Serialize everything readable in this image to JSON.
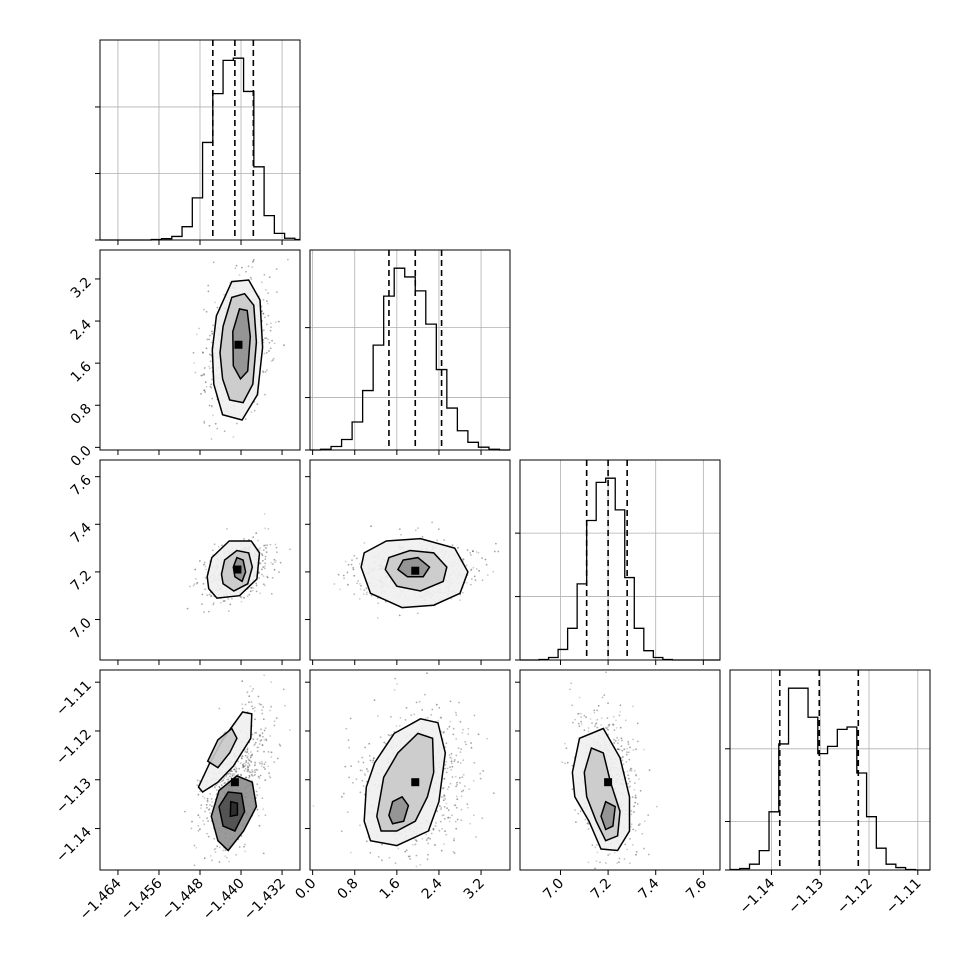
{
  "chart_data": {
    "type": "corner",
    "parameters": [
      {
        "range": [
          -1.4675,
          -1.4285
        ],
        "ticks": [
          -1.464,
          -1.456,
          -1.448,
          -1.44,
          -1.432
        ],
        "tick_labels": [
          "−1.464",
          "−1.456",
          "−1.448",
          "−1.440",
          "−1.432"
        ]
      },
      {
        "range": [
          -0.05,
          3.75
        ],
        "ticks": [
          0.0,
          0.8,
          1.6,
          2.4,
          3.2
        ],
        "tick_labels": [
          "0.0",
          "0.8",
          "1.6",
          "2.4",
          "3.2"
        ]
      },
      {
        "range": [
          6.83,
          7.67
        ],
        "ticks": [
          7.0,
          7.2,
          7.4,
          7.6
        ],
        "tick_labels": [
          "7.0",
          "7.2",
          "7.4",
          "7.6"
        ]
      },
      {
        "range": [
          -1.1485,
          -1.1075
        ],
        "ticks": [
          -1.14,
          -1.13,
          -1.12,
          -1.11
        ],
        "tick_labels": [
          "−1.14",
          "−1.13",
          "−1.12",
          "−1.11"
        ]
      }
    ],
    "histograms": [
      {
        "param": 0,
        "bin_edges": [
          -1.4675,
          -1.4655,
          -1.4635,
          -1.4615,
          -1.4595,
          -1.4575,
          -1.4555,
          -1.4535,
          -1.4515,
          -1.4495,
          -1.4475,
          -1.4455,
          -1.4435,
          -1.4415,
          -1.4395,
          -1.4375,
          -1.4355,
          -1.4335,
          -1.4315,
          -1.4295,
          -1.4285
        ],
        "counts": [
          0,
          0,
          0,
          0,
          0,
          1,
          3,
          8,
          30,
          95,
          220,
          330,
          405,
          410,
          335,
          165,
          55,
          15,
          4,
          1
        ],
        "quantiles": [
          -1.4455,
          -1.4412,
          -1.4376
        ]
      },
      {
        "param": 1,
        "bin_edges": [
          -0.05,
          0.15,
          0.35,
          0.55,
          0.75,
          0.95,
          1.15,
          1.35,
          1.55,
          1.75,
          1.95,
          2.15,
          2.35,
          2.55,
          2.75,
          2.95,
          3.15,
          3.35,
          3.55,
          3.75
        ],
        "counts": [
          0,
          2,
          10,
          30,
          80,
          170,
          300,
          440,
          520,
          495,
          455,
          360,
          230,
          120,
          55,
          22,
          8,
          2,
          0
        ],
        "quantiles": [
          1.45,
          1.95,
          2.45
        ]
      },
      {
        "param": 2,
        "bin_edges": [
          6.83,
          6.87,
          6.91,
          6.95,
          6.99,
          7.03,
          7.07,
          7.11,
          7.15,
          7.19,
          7.23,
          7.27,
          7.31,
          7.35,
          7.39,
          7.43,
          7.47,
          7.51,
          7.55,
          7.59,
          7.63,
          7.67
        ],
        "counts": [
          0,
          0,
          1,
          6,
          25,
          75,
          180,
          330,
          420,
          430,
          355,
          195,
          75,
          22,
          6,
          1,
          0,
          0,
          0,
          0,
          0
        ],
        "quantiles": [
          7.11,
          7.2,
          7.28
        ]
      },
      {
        "param": 3,
        "bin_edges": [
          -1.1485,
          -1.1465,
          -1.1445,
          -1.1425,
          -1.1405,
          -1.1385,
          -1.1365,
          -1.1345,
          -1.1325,
          -1.1305,
          -1.1285,
          -1.1265,
          -1.1245,
          -1.1225,
          -1.1205,
          -1.1185,
          -1.1165,
          -1.1145,
          -1.1125,
          -1.1105,
          -1.1085,
          -1.1075
        ],
        "counts": [
          1,
          3,
          12,
          40,
          120,
          260,
          375,
          375,
          315,
          240,
          255,
          290,
          295,
          200,
          110,
          45,
          12,
          5,
          1,
          0,
          0
        ],
        "quantiles": [
          -1.1383,
          -1.1302,
          -1.1222
        ]
      }
    ],
    "pairs": [
      {
        "x": 0,
        "y": 1,
        "contours": [
          [
            [
              -1.4453,
              1.2
            ],
            [
              -1.4436,
              0.62
            ],
            [
              -1.4398,
              0.52
            ],
            [
              -1.4368,
              1.0
            ],
            [
              -1.4358,
              1.9
            ],
            [
              -1.4363,
              2.8
            ],
            [
              -1.4385,
              3.18
            ],
            [
              -1.4418,
              3.15
            ],
            [
              -1.4448,
              2.5
            ],
            [
              -1.4456,
              1.85
            ],
            [
              -1.4453,
              1.2
            ]
          ],
          [
            [
              -1.4436,
              1.3
            ],
            [
              -1.4422,
              0.9
            ],
            [
              -1.4396,
              0.85
            ],
            [
              -1.4377,
              1.2
            ],
            [
              -1.437,
              2.0
            ],
            [
              -1.4375,
              2.7
            ],
            [
              -1.4393,
              2.92
            ],
            [
              -1.4418,
              2.85
            ],
            [
              -1.4435,
              2.3
            ],
            [
              -1.4441,
              1.8
            ],
            [
              -1.4436,
              1.3
            ]
          ],
          [
            [
              -1.4415,
              1.55
            ],
            [
              -1.4401,
              1.3
            ],
            [
              -1.4387,
              1.45
            ],
            [
              -1.4382,
              2.1
            ],
            [
              -1.4388,
              2.6
            ],
            [
              -1.4403,
              2.63
            ],
            [
              -1.4416,
              2.2
            ],
            [
              -1.4415,
              1.55
            ]
          ]
        ],
        "dots": {
          "center": [
            -1.4405,
            1.95
          ],
          "sigma": [
            0.0032,
            0.62
          ],
          "corr": 0.25,
          "count": 700
        }
      },
      {
        "x": 0,
        "y": 2,
        "contours": [
          [
            [
              -1.4463,
              7.13
            ],
            [
              -1.4447,
              7.09
            ],
            [
              -1.4403,
              7.1
            ],
            [
              -1.4369,
              7.17
            ],
            [
              -1.4364,
              7.28
            ],
            [
              -1.438,
              7.33
            ],
            [
              -1.4423,
              7.33
            ],
            [
              -1.4457,
              7.26
            ],
            [
              -1.4466,
              7.18
            ],
            [
              -1.4463,
              7.13
            ]
          ],
          [
            [
              -1.4435,
              7.15
            ],
            [
              -1.4414,
              7.12
            ],
            [
              -1.4387,
              7.15
            ],
            [
              -1.4378,
              7.22
            ],
            [
              -1.4385,
              7.28
            ],
            [
              -1.4408,
              7.29
            ],
            [
              -1.4432,
              7.25
            ],
            [
              -1.4438,
              7.19
            ],
            [
              -1.4435,
              7.15
            ]
          ],
          [
            [
              -1.4412,
              7.18
            ],
            [
              -1.4398,
              7.16
            ],
            [
              -1.4391,
              7.2
            ],
            [
              -1.4396,
              7.25
            ],
            [
              -1.4408,
              7.26
            ],
            [
              -1.4415,
              7.22
            ],
            [
              -1.4412,
              7.18
            ]
          ]
        ],
        "dots": {
          "center": [
            -1.4407,
            7.21
          ],
          "sigma": [
            0.0032,
            0.062
          ],
          "corr": 0.3,
          "count": 600
        }
      },
      {
        "x": 1,
        "y": 2,
        "contours": [
          [
            [
              0.92,
              7.22
            ],
            [
              1.1,
              7.11
            ],
            [
              1.7,
              7.05
            ],
            [
              2.3,
              7.06
            ],
            [
              2.8,
              7.11
            ],
            [
              2.95,
              7.2
            ],
            [
              2.7,
              7.3
            ],
            [
              2.05,
              7.34
            ],
            [
              1.4,
              7.33
            ],
            [
              0.98,
              7.28
            ],
            [
              0.92,
              7.22
            ]
          ],
          [
            [
              1.38,
              7.21
            ],
            [
              1.6,
              7.14
            ],
            [
              2.05,
              7.12
            ],
            [
              2.48,
              7.16
            ],
            [
              2.55,
              7.22
            ],
            [
              2.3,
              7.28
            ],
            [
              1.85,
              7.29
            ],
            [
              1.45,
              7.26
            ],
            [
              1.38,
              7.21
            ]
          ],
          [
            [
              1.62,
              7.21
            ],
            [
              1.8,
              7.18
            ],
            [
              2.1,
              7.18
            ],
            [
              2.22,
              7.22
            ],
            [
              2.0,
              7.26
            ],
            [
              1.72,
              7.25
            ],
            [
              1.62,
              7.21
            ]
          ]
        ],
        "dots": {
          "center": [
            1.95,
            7.205
          ],
          "sigma": [
            0.55,
            0.062
          ],
          "corr": 0.05,
          "count": 650
        }
      },
      {
        "x": 0,
        "y": 3,
        "contours": [
          [
            [
              -1.4483,
              -1.1315
            ],
            [
              -1.4462,
              -1.1268
            ],
            [
              -1.4434,
              -1.1215
            ],
            [
              -1.4397,
              -1.1161
            ],
            [
              -1.4379,
              -1.1165
            ],
            [
              -1.4381,
              -1.1215
            ],
            [
              -1.4415,
              -1.1272
            ],
            [
              -1.4445,
              -1.1305
            ],
            [
              -1.4475,
              -1.1325
            ],
            [
              -1.4483,
              -1.1315
            ]
          ],
          [
            [
              -1.4465,
              -1.1262
            ],
            [
              -1.4445,
              -1.1218
            ],
            [
              -1.4418,
              -1.1195
            ],
            [
              -1.4408,
              -1.1215
            ],
            [
              -1.4422,
              -1.1245
            ],
            [
              -1.4445,
              -1.1275
            ],
            [
              -1.4465,
              -1.1262
            ]
          ],
          [
            [
              -1.4445,
              -1.1425
            ],
            [
              -1.4458,
              -1.1375
            ],
            [
              -1.4443,
              -1.1322
            ],
            [
              -1.4408,
              -1.1292
            ],
            [
              -1.4378,
              -1.1305
            ],
            [
              -1.437,
              -1.1355
            ],
            [
              -1.4395,
              -1.1405
            ],
            [
              -1.4425,
              -1.1445
            ],
            [
              -1.4445,
              -1.1425
            ]
          ],
          [
            [
              -1.4435,
              -1.1395
            ],
            [
              -1.4443,
              -1.1355
            ],
            [
              -1.4425,
              -1.1325
            ],
            [
              -1.4399,
              -1.1328
            ],
            [
              -1.4393,
              -1.1365
            ],
            [
              -1.4412,
              -1.1405
            ],
            [
              -1.4435,
              -1.1395
            ]
          ],
          [
            [
              -1.4421,
              -1.1375
            ],
            [
              -1.442,
              -1.1345
            ],
            [
              -1.4407,
              -1.1348
            ],
            [
              -1.4407,
              -1.1372
            ],
            [
              -1.4421,
              -1.1375
            ]
          ]
        ],
        "dots": {
          "center": [
            -1.4412,
            -1.1305
          ],
          "sigma": [
            0.0034,
            0.0075
          ],
          "corr": 0.55,
          "count": 650
        }
      },
      {
        "x": 1,
        "y": 3,
        "contours": [
          [
            [
              0.98,
              -1.1385
            ],
            [
              1.02,
              -1.1315
            ],
            [
              1.18,
              -1.1265
            ],
            [
              1.55,
              -1.1205
            ],
            [
              2.05,
              -1.1175
            ],
            [
              2.38,
              -1.1183
            ],
            [
              2.52,
              -1.1245
            ],
            [
              2.4,
              -1.1345
            ],
            [
              2.2,
              -1.1405
            ],
            [
              1.6,
              -1.1435
            ],
            [
              1.1,
              -1.1425
            ],
            [
              0.98,
              -1.1385
            ]
          ],
          [
            [
              1.22,
              -1.1375
            ],
            [
              1.35,
              -1.1295
            ],
            [
              1.62,
              -1.1245
            ],
            [
              2.0,
              -1.1205
            ],
            [
              2.28,
              -1.1215
            ],
            [
              2.3,
              -1.1285
            ],
            [
              2.18,
              -1.1335
            ],
            [
              1.95,
              -1.1385
            ],
            [
              1.6,
              -1.1405
            ],
            [
              1.3,
              -1.1405
            ],
            [
              1.22,
              -1.1375
            ]
          ],
          [
            [
              1.45,
              -1.1373
            ],
            [
              1.52,
              -1.1345
            ],
            [
              1.7,
              -1.1335
            ],
            [
              1.82,
              -1.1353
            ],
            [
              1.73,
              -1.1385
            ],
            [
              1.52,
              -1.139
            ],
            [
              1.45,
              -1.1373
            ]
          ]
        ],
        "dots": {
          "center": [
            1.95,
            -1.1305
          ],
          "sigma": [
            0.55,
            0.0075
          ],
          "corr": 0.1,
          "count": 700
        }
      },
      {
        "x": 2,
        "y": 3,
        "contours": [
          [
            [
              7.05,
              -1.1285
            ],
            [
              7.08,
              -1.1215
            ],
            [
              7.18,
              -1.1195
            ],
            [
              7.25,
              -1.1255
            ],
            [
              7.29,
              -1.1335
            ],
            [
              7.29,
              -1.1405
            ],
            [
              7.24,
              -1.1445
            ],
            [
              7.17,
              -1.1442
            ],
            [
              7.12,
              -1.1385
            ],
            [
              7.06,
              -1.1335
            ],
            [
              7.05,
              -1.1285
            ]
          ],
          [
            [
              7.1,
              -1.1285
            ],
            [
              7.13,
              -1.1235
            ],
            [
              7.18,
              -1.1245
            ],
            [
              7.21,
              -1.1305
            ],
            [
              7.25,
              -1.1365
            ],
            [
              7.24,
              -1.1415
            ],
            [
              7.19,
              -1.1425
            ],
            [
              7.15,
              -1.1385
            ],
            [
              7.11,
              -1.1335
            ],
            [
              7.1,
              -1.1285
            ]
          ],
          [
            [
              7.17,
              -1.1375
            ],
            [
              7.19,
              -1.1345
            ],
            [
              7.23,
              -1.1355
            ],
            [
              7.22,
              -1.1395
            ],
            [
              7.19,
              -1.1402
            ],
            [
              7.17,
              -1.1375
            ]
          ]
        ],
        "dots": {
          "center": [
            7.2,
            -1.1305
          ],
          "sigma": [
            0.062,
            0.0075
          ],
          "corr": -0.25,
          "count": 650
        }
      }
    ]
  }
}
